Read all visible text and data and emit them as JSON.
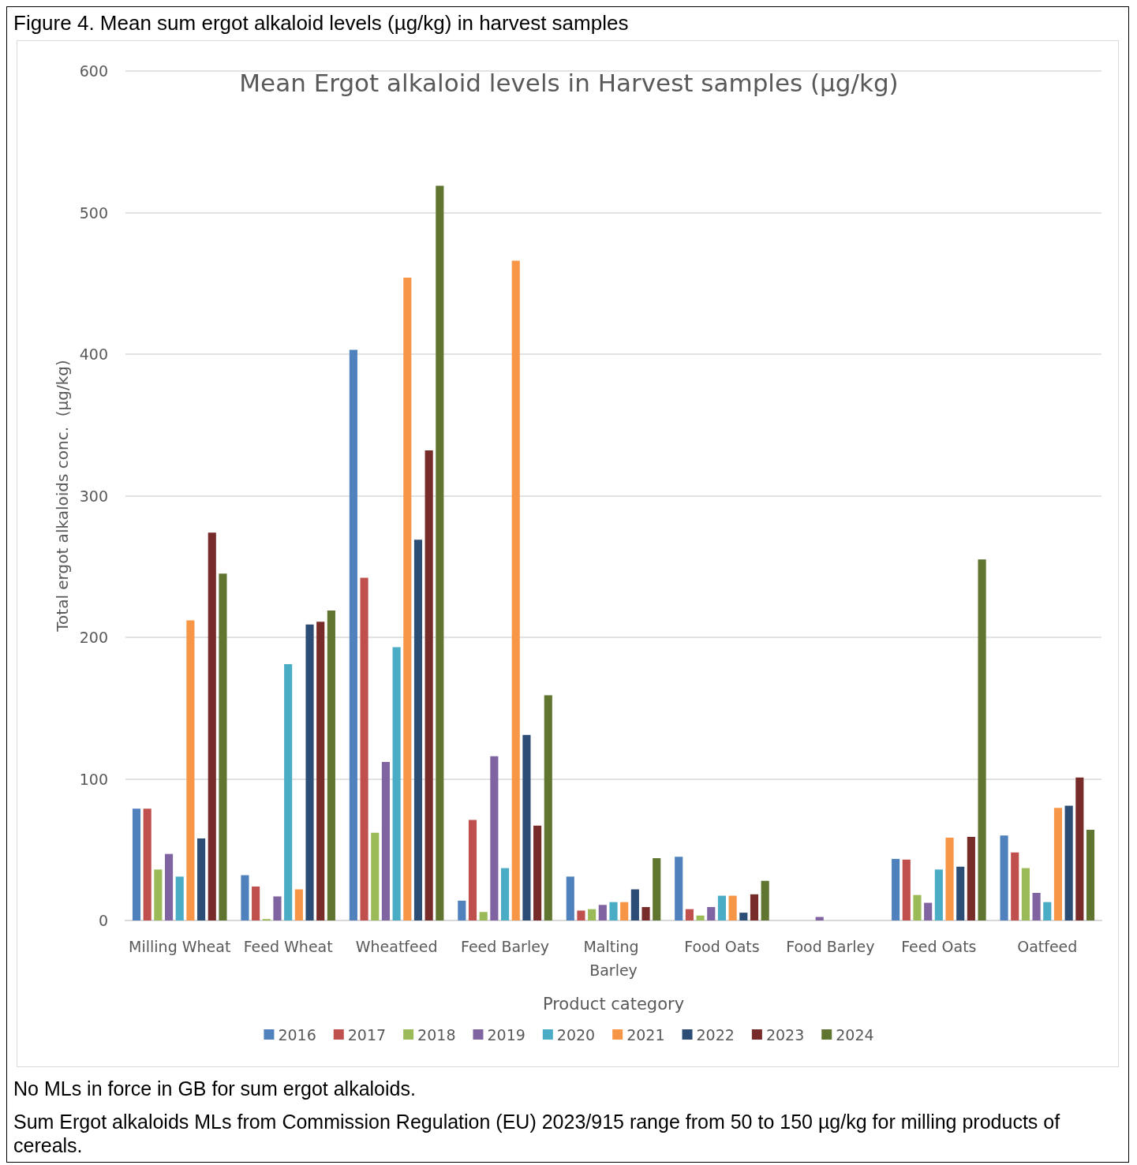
{
  "chart_data": {
    "type": "bar",
    "title": "Figure 4. Mean sum ergot alkaloid levels (µg/kg) in harvest samples",
    "subtitle": "Mean Ergot alkaloid levels in Harvest samples (µg/kg)",
    "xlabel": "Product category",
    "ylabel": "Total ergot alkaloids conc.  (µg/kg)",
    "categories": [
      "Milling Wheat",
      "Feed Wheat",
      "Wheatfeed",
      "Feed Barley",
      "Malting Barley",
      "Food Oats",
      "Food Barley",
      "Feed Oats",
      "Oatfeed"
    ],
    "series": [
      {
        "name": "2016",
        "color": "#4f81bd",
        "values": [
          79,
          32,
          403,
          14,
          31,
          45,
          null,
          43.5,
          60
        ]
      },
      {
        "name": "2017",
        "color": "#c0504d",
        "values": [
          79,
          24,
          242,
          71,
          7,
          8,
          null,
          43,
          48
        ]
      },
      {
        "name": "2018",
        "color": "#9bbb59",
        "values": [
          36,
          1,
          62,
          6,
          8,
          3.5,
          null,
          18,
          37
        ]
      },
      {
        "name": "2019",
        "color": "#8064a2",
        "values": [
          47,
          17,
          112,
          116,
          11,
          9.5,
          2.5,
          12.5,
          19.5
        ]
      },
      {
        "name": "2020",
        "color": "#4bacc6",
        "values": [
          31,
          181,
          193,
          37,
          13,
          17.5,
          null,
          36,
          13
        ]
      },
      {
        "name": "2021",
        "color": "#f79646",
        "values": [
          212,
          22,
          454,
          466,
          13,
          17.5,
          null,
          58.5,
          79.5
        ]
      },
      {
        "name": "2022",
        "color": "#2c4d75",
        "values": [
          58,
          209,
          269,
          131,
          22,
          5.5,
          null,
          38,
          81
        ]
      },
      {
        "name": "2023",
        "color": "#772c2a",
        "values": [
          274,
          211,
          332,
          67,
          9.5,
          18.5,
          null,
          59,
          101
        ]
      },
      {
        "name": "2024",
        "color": "#5f7530",
        "values": [
          245,
          219,
          519,
          159,
          44,
          28,
          null,
          255,
          64
        ]
      }
    ],
    "ylim": [
      0,
      600
    ],
    "yticks": [
      0,
      100,
      200,
      300,
      400,
      500,
      600
    ],
    "grid": "y",
    "legend": "bottom",
    "annotations": [
      "No MLs in force in GB for sum ergot alkaloids.",
      "Sum Ergot alkaloids MLs from Commission Regulation (EU) 2023/915 range from 50 to 150 µg/kg for milling products of cereals."
    ]
  }
}
